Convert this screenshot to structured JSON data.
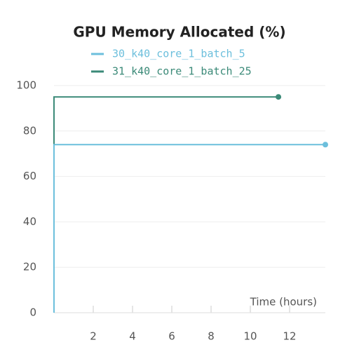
{
  "chart_data": {
    "type": "line",
    "title": "GPU Memory Allocated (%)",
    "x_label": "Time (hours)",
    "series": [
      {
        "name": "30_k40_core_1_batch_5",
        "color": "#6cbfdc",
        "x": [
          0,
          0,
          13.82
        ],
        "values": [
          0,
          74,
          74
        ]
      },
      {
        "name": "31_k40_core_1_batch_25",
        "color": "#3b8a78",
        "x": [
          0,
          0,
          11.43
        ],
        "values": [
          0,
          95,
          95
        ]
      }
    ],
    "xlim": [
      0,
      13.82
    ],
    "ylim": [
      0,
      100
    ],
    "xticks": [
      2,
      4,
      6,
      8,
      10,
      12
    ],
    "yticks": [
      0,
      20,
      40,
      60,
      80,
      100
    ],
    "grid": true
  }
}
